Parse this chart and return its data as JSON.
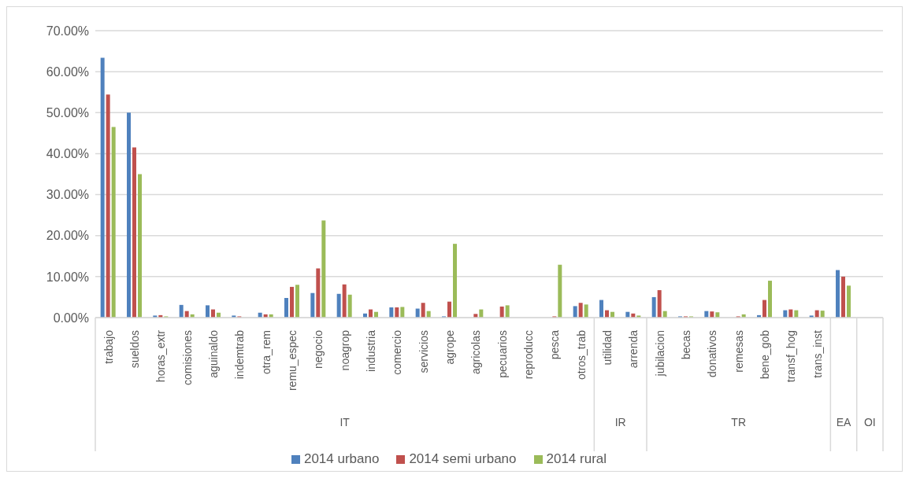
{
  "chart_data": {
    "type": "bar",
    "categories": [
      "trabajo",
      "sueldos",
      "horas_extr",
      "comisiones",
      "aguinaldo",
      "indemtrab",
      "otra_rem",
      "remu_espec",
      "negocio",
      "noagrop",
      "industria",
      "comercio",
      "servicios",
      "agrope",
      "agricolas",
      "pecuarios",
      "reproducc",
      "pesca",
      "otros_trab",
      "utilidad",
      "arrenda",
      "jubilacion",
      "becas",
      "donativos",
      "remesas",
      "bene_gob",
      "transf_hog",
      "trans_inst",
      null,
      null
    ],
    "series": [
      {
        "name": "2014 urbano",
        "color": "#4f81bd",
        "values": [
          63.4,
          50.0,
          0.5,
          3.1,
          3.0,
          0.5,
          1.2,
          4.8,
          6.0,
          5.8,
          1.0,
          2.5,
          2.2,
          0.3,
          0,
          0,
          0,
          0,
          2.8,
          4.3,
          1.4,
          5.0,
          0.3,
          1.6,
          null,
          0.6,
          1.8,
          0.5,
          11.6,
          null
        ]
      },
      {
        "name": "2014 semi urbano",
        "color": "#c0504d",
        "values": [
          54.4,
          41.5,
          0.6,
          1.6,
          2.0,
          0.3,
          0.8,
          7.5,
          12.0,
          8.1,
          2.0,
          2.5,
          3.6,
          3.9,
          0.9,
          2.7,
          0,
          0.3,
          3.6,
          1.8,
          1.0,
          6.7,
          0.3,
          1.5,
          0.3,
          4.3,
          2.0,
          1.8,
          10.0,
          0
        ]
      },
      {
        "name": "2014 rural",
        "color": "#9bbb59",
        "values": [
          46.5,
          35.0,
          0.3,
          0.8,
          1.2,
          0,
          0.8,
          8.0,
          23.7,
          5.6,
          1.4,
          2.6,
          1.6,
          18.0,
          2.0,
          3.0,
          0,
          12.9,
          3.2,
          1.4,
          0.5,
          1.6,
          0.3,
          1.3,
          0.8,
          9.0,
          1.8,
          1.7,
          7.8,
          0
        ]
      }
    ],
    "ylim": [
      0,
      70
    ],
    "yticks": [
      {
        "value": 0,
        "label": "0.00%"
      },
      {
        "value": 10,
        "label": "10.00%"
      },
      {
        "value": 20,
        "label": "20.00%"
      },
      {
        "value": 30,
        "label": "30.00%"
      },
      {
        "value": 40,
        "label": "40.00%"
      },
      {
        "value": 50,
        "label": "50.00%"
      },
      {
        "value": 60,
        "label": "60.00%"
      },
      {
        "value": 70,
        "label": "70.00%"
      }
    ],
    "annotations": [
      "IT",
      "IR",
      "TR",
      "EA",
      "OI"
    ],
    "grid": "y",
    "legend": "bottom"
  }
}
